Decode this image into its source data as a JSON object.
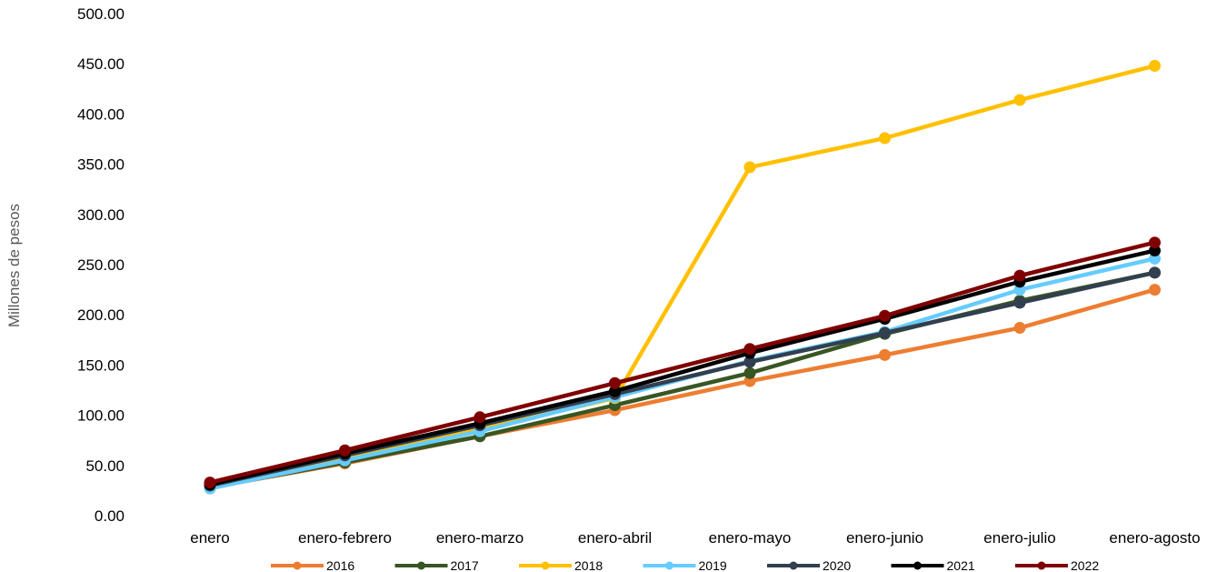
{
  "chart_data": {
    "type": "line",
    "title": "",
    "xlabel": "",
    "ylabel": "Millones de pesos",
    "ylim": [
      0,
      500
    ],
    "yticks": [
      "0.00",
      "50.00",
      "100.00",
      "150.00",
      "200.00",
      "250.00",
      "300.00",
      "350.00",
      "400.00",
      "450.00",
      "500.00"
    ],
    "grid": false,
    "legend_position": "bottom",
    "categories": [
      "enero",
      "enero-febrero",
      "enero-marzo",
      "enero-abril",
      "enero-mayo",
      "enero-junio",
      "enero-julio",
      "enero-agosto"
    ],
    "series": [
      {
        "name": "2016",
        "color": "#ED7D31",
        "values": [
          28,
          52,
          79,
          105,
          134,
          160,
          187,
          225
        ]
      },
      {
        "name": "2017",
        "color": "#375623",
        "values": [
          28,
          53,
          79,
          110,
          142,
          181,
          214,
          242
        ]
      },
      {
        "name": "2018",
        "color": "#FFC000",
        "values": [
          30,
          57,
          86,
          117,
          347,
          376,
          414,
          448
        ]
      },
      {
        "name": "2019",
        "color": "#66CCFF",
        "values": [
          27,
          55,
          84,
          118,
          154,
          183,
          225,
          256
        ]
      },
      {
        "name": "2020",
        "color": "#323F4F",
        "values": [
          30,
          60,
          90,
          121,
          153,
          182,
          212,
          242
        ]
      },
      {
        "name": "2021",
        "color": "#000000",
        "values": [
          31,
          62,
          92,
          124,
          162,
          196,
          233,
          264
        ]
      },
      {
        "name": "2022",
        "color": "#7F0000",
        "values": [
          33,
          65,
          98,
          132,
          166,
          199,
          239,
          272
        ]
      }
    ]
  }
}
